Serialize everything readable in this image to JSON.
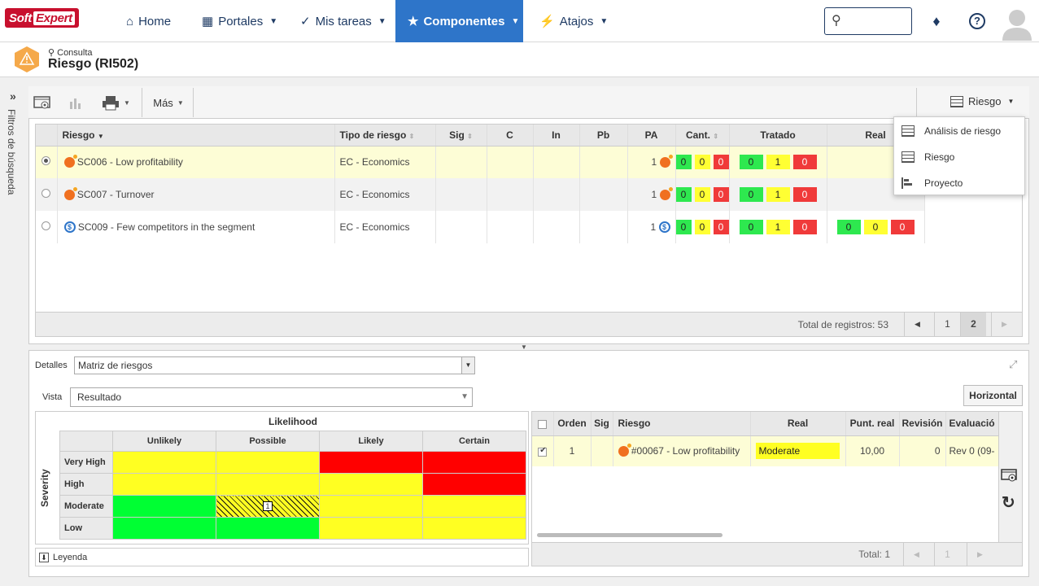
{
  "nav": {
    "logo_a": "Soft",
    "logo_b": "Expert",
    "home": "Home",
    "portales": "Portales",
    "mis_tareas": "Mis tareas",
    "componentes": "Componentes",
    "atajos": "Atajos"
  },
  "header": {
    "crumb": "Consulta",
    "title": "Riesgo (RI502)"
  },
  "side": {
    "filter_label": "Filtros de búsqueda"
  },
  "toolbar": {
    "mas": "Más",
    "view_select": "Riesgo"
  },
  "menu": [
    "Análisis de riesgo",
    "Riesgo",
    "Proyecto"
  ],
  "grid": {
    "columns": [
      "Riesgo",
      "Tipo de riesgo",
      "Sig",
      "C",
      "In",
      "Pb",
      "PA",
      "Cant.",
      "Tratado",
      "Real"
    ],
    "rows": [
      {
        "name": "SC006 - Low profitability",
        "type": "EC - Economics",
        "cant": "1",
        "tratado": [
          "0",
          "0",
          "0"
        ],
        "real": [
          "0",
          "1",
          "0"
        ]
      },
      {
        "name": "SC007 - Turnover",
        "type": "EC - Economics",
        "cant": "1",
        "tratado": [
          "0",
          "0",
          "0"
        ],
        "real": [
          "0",
          "1",
          "0"
        ]
      },
      {
        "name": "SC009 - Few competitors in the segment",
        "type": "EC - Economics",
        "cant": "1",
        "tratado": [
          "0",
          "0",
          "0"
        ],
        "real": [
          "0",
          "1",
          "0"
        ],
        "extra": [
          "0",
          "0",
          "0"
        ]
      }
    ],
    "total": "Total de registros: 53",
    "pages": [
      "1",
      "2"
    ]
  },
  "details": {
    "label": "Detalles",
    "value": "Matriz de riesgos",
    "vista_label": "Vista",
    "vista_value": "Resultado",
    "horizontal": "Horizontal"
  },
  "matrix": {
    "x_title": "Likelihood",
    "y_title": "Severity",
    "cols": [
      "Unlikely",
      "Possible",
      "Likely",
      "Certain"
    ],
    "rows": [
      "Very High",
      "High",
      "Moderate",
      "Low"
    ],
    "count": "1",
    "legend": "Leyenda"
  },
  "rgrid": {
    "columns": [
      "Orden",
      "Sig",
      "Riesgo",
      "Real",
      "Punt. real",
      "Revisión",
      "Evaluació"
    ],
    "row": {
      "orden": "1",
      "riesgo": "#00067 - Low profitability",
      "real": "Moderate",
      "punt": "10,00",
      "rev": "0",
      "eval": "Rev 0 (09-"
    },
    "total": "Total: 1"
  }
}
